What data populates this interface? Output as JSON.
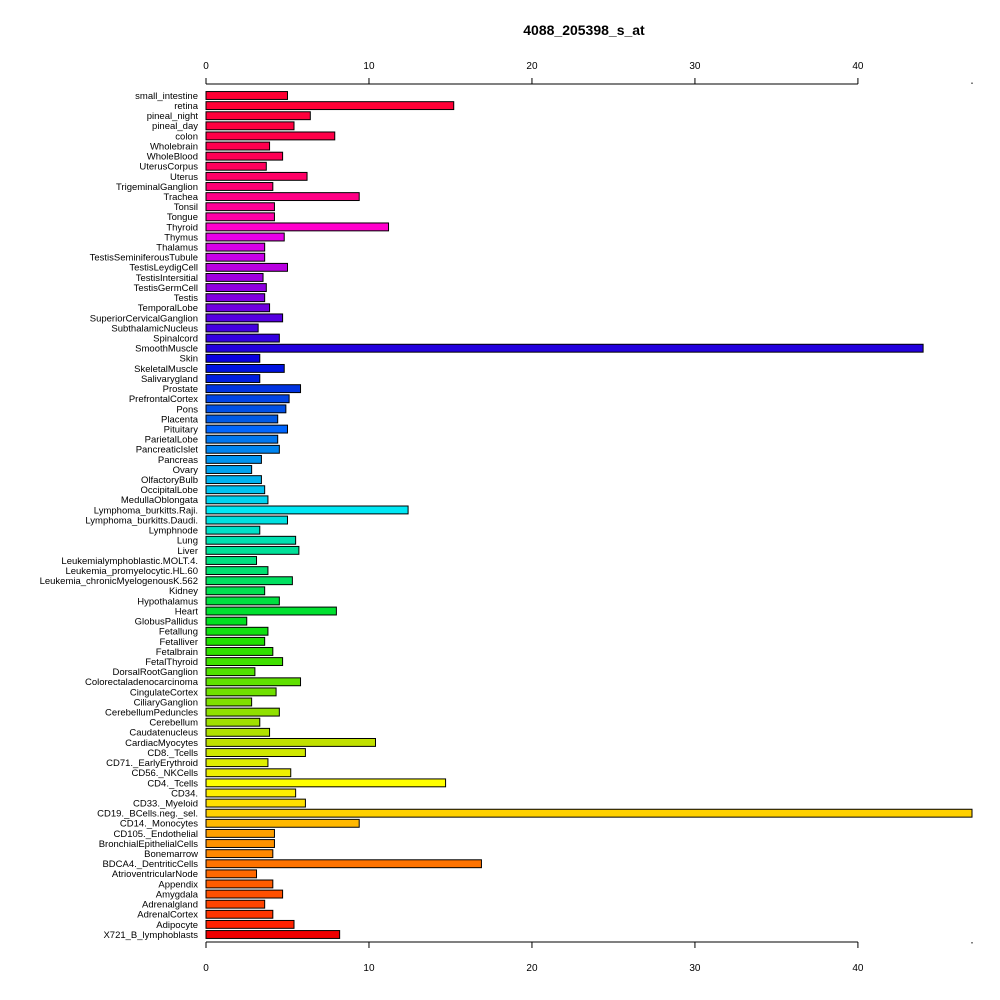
{
  "chart_data": {
    "type": "bar",
    "orientation": "horizontal",
    "title": "4088_205398_s_at",
    "xlabel": "",
    "ylabel": "",
    "xlim": [
      0,
      47
    ],
    "x_ticks": [
      0,
      10,
      20,
      30,
      40
    ],
    "grid": false,
    "legend": "none",
    "categories": [
      "small_intestine",
      "retina",
      "pineal_night",
      "pineal_day",
      "colon",
      "Wholebrain",
      "WholeBlood",
      "UterusCorpus",
      "Uterus",
      "TrigeminalGanglion",
      "Trachea",
      "Tonsil",
      "Tongue",
      "Thyroid",
      "Thymus",
      "Thalamus",
      "TestisSeminiferousTubule",
      "TestisLeydigCell",
      "TestisIntersitial",
      "TestisGermCell",
      "Testis",
      "TemporalLobe",
      "SuperiorCervicalGanglion",
      "SubthalamicNucleus",
      "Spinalcord",
      "SmoothMuscle",
      "Skin",
      "SkeletalMuscle",
      "Salivarygland",
      "Prostate",
      "PrefrontalCortex",
      "Pons",
      "Placenta",
      "Pituitary",
      "ParietalLobe",
      "PancreaticIslet",
      "Pancreas",
      "Ovary",
      "OlfactoryBulb",
      "OccipitalLobe",
      "MedullaOblongata",
      "Lymphoma_burkitts.Raji.",
      "Lymphoma_burkitts.Daudi.",
      "Lymphnode",
      "Lung",
      "Liver",
      "Leukemialymphoblastic.MOLT.4.",
      "Leukemia_promyelocytic.HL.60",
      "Leukemia_chronicMyelogenousK.562",
      "Kidney",
      "Hypothalamus",
      "Heart",
      "GlobusPallidus",
      "Fetallung",
      "Fetalliver",
      "Fetalbrain",
      "FetalThyroid",
      "DorsalRootGanglion",
      "Colorectaladenocarcinoma",
      "CingulateCortex",
      "CiliaryGanglion",
      "CerebellumPeduncles",
      "Cerebellum",
      "Caudatenucleus",
      "CardiacMyocytes",
      "CD8._Tcells",
      "CD71._EarlyErythroid",
      "CD56._NKCells",
      "CD4._Tcells",
      "CD34.",
      "CD33._Myeloid",
      "CD19._BCells.neg._sel.",
      "CD14._Monocytes",
      "CD105._Endothelial",
      "BronchialEpithelialCells",
      "Bonemarrow",
      "BDCA4._DentriticCells",
      "AtrioventricularNode",
      "Appendix",
      "Amygdala",
      "Adrenalgland",
      "AdrenalCortex",
      "Adipocyte",
      "X721_B_lymphoblasts"
    ],
    "values": [
      5.0,
      15.2,
      6.4,
      5.4,
      7.9,
      3.9,
      4.7,
      3.7,
      6.2,
      4.1,
      9.4,
      4.2,
      4.2,
      11.2,
      4.8,
      3.6,
      3.6,
      5.0,
      3.5,
      3.7,
      3.6,
      3.9,
      4.7,
      3.2,
      4.5,
      44.0,
      3.3,
      4.8,
      3.3,
      5.8,
      5.1,
      4.9,
      4.4,
      5.0,
      4.4,
      4.5,
      3.4,
      2.8,
      3.4,
      3.6,
      3.8,
      12.4,
      5.0,
      3.3,
      5.5,
      5.7,
      3.1,
      3.8,
      5.3,
      3.6,
      4.5,
      8.0,
      2.5,
      3.8,
      3.6,
      4.1,
      4.7,
      3.0,
      5.8,
      4.3,
      2.8,
      4.5,
      3.3,
      3.9,
      10.4,
      6.1,
      3.8,
      5.2,
      14.7,
      5.5,
      6.1,
      47.0,
      9.4,
      4.2,
      4.2,
      4.1,
      16.9,
      3.1,
      4.1,
      4.7,
      3.6,
      4.1,
      5.4,
      8.2
    ],
    "bar_colors": [
      "#ff0033",
      "#ff0036",
      "#ff003c",
      "#ff0040",
      "#ff0048",
      "#ff004e",
      "#ff0055",
      "#ff005c",
      "#ff0066",
      "#ff0073",
      "#ff0085",
      "#ff0095",
      "#ff00a6",
      "#ff00cc",
      "#e800e8",
      "#d800e8",
      "#c800e8",
      "#b800e0",
      "#a000e0",
      "#9000e0",
      "#8000e0",
      "#6f00e0",
      "#5500e0",
      "#4400e0",
      "#3300e0",
      "#2200dd",
      "#0a00e0",
      "#0012e0",
      "#001ee0",
      "#0033e0",
      "#0044e6",
      "#0050e6",
      "#005ae6",
      "#0066ff",
      "#0077f0",
      "#0085f0",
      "#0095f0",
      "#00a3f0",
      "#00b3f0",
      "#00c3f0",
      "#00d3f0",
      "#00e8f5",
      "#00e0e0",
      "#00e0c8",
      "#00e0b0",
      "#00e098",
      "#00e080",
      "#00e070",
      "#00e060",
      "#00e050",
      "#00e040",
      "#00e030",
      "#00e020",
      "#10e010",
      "#20e000",
      "#30e000",
      "#40e000",
      "#50e000",
      "#60e000",
      "#70e000",
      "#80e000",
      "#90e000",
      "#a0e000",
      "#b0e000",
      "#c0e000",
      "#d0e800",
      "#e0ee00",
      "#eeee00",
      "#ffff00",
      "#ffee00",
      "#ffe000",
      "#ffd000",
      "#ffb800",
      "#ffa000",
      "#ff9200",
      "#ff8800",
      "#ff7300",
      "#ff6800",
      "#ff5c00",
      "#ff5000",
      "#ff4400",
      "#ff3500",
      "#ff2200",
      "#ee0000"
    ]
  }
}
